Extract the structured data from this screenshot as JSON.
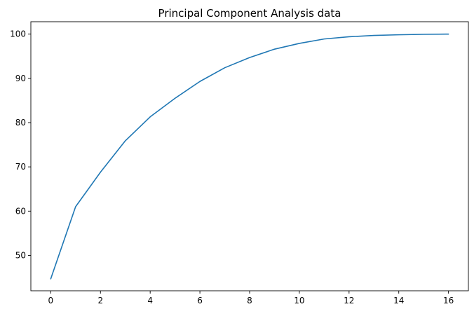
{
  "chart_data": {
    "type": "line",
    "title": "Principal Component Analysis data",
    "xlabel": "",
    "ylabel": "",
    "x": [
      0,
      1,
      2,
      3,
      4,
      5,
      6,
      7,
      8,
      9,
      10,
      11,
      12,
      13,
      14,
      15,
      16
    ],
    "series": [
      {
        "values": [
          44.7,
          61.0,
          68.8,
          75.9,
          81.3,
          85.5,
          89.3,
          92.4,
          94.7,
          96.6,
          97.9,
          98.9,
          99.4,
          99.7,
          99.85,
          99.95,
          100.0
        ]
      }
    ],
    "xlim": [
      -0.8,
      16.8
    ],
    "ylim": [
      42.0,
      102.8
    ],
    "xticks": [
      "0",
      "2",
      "4",
      "6",
      "8",
      "10",
      "12",
      "14",
      "16"
    ],
    "yticks": [
      "50",
      "60",
      "70",
      "80",
      "90",
      "100"
    ],
    "grid": false,
    "line_color": "#1f77b4"
  }
}
